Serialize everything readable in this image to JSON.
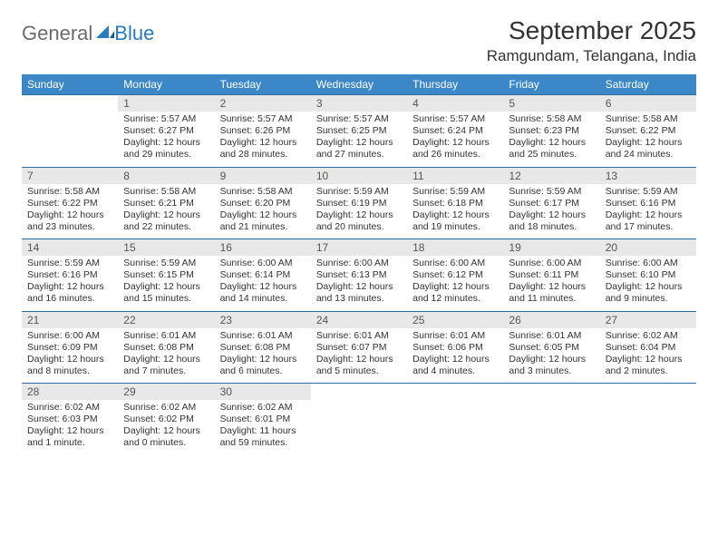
{
  "brand": {
    "word1": "General",
    "word2": "Blue"
  },
  "title": "September 2025",
  "location": "Ramgundam, Telangana, India",
  "colors": {
    "header_bg": "#3b87c8",
    "header_text": "#ffffff",
    "daynum_bg": "#e8e8e8",
    "row_divider": "#2e6ca3",
    "body_text": "#333333",
    "logo_gray": "#6b6b6b",
    "logo_blue": "#2a7ac0",
    "page_bg": "#ffffff"
  },
  "fonts": {
    "title_pt": 28,
    "location_pt": 17,
    "header_pt": 12,
    "daynum_pt": 12,
    "cell_pt": 10.5
  },
  "weekday_headers": [
    "Sunday",
    "Monday",
    "Tuesday",
    "Wednesday",
    "Thursday",
    "Friday",
    "Saturday"
  ],
  "weeks": [
    {
      "days": [
        {
          "empty": true
        },
        {
          "n": "1",
          "l1": "Sunrise: 5:57 AM",
          "l2": "Sunset: 6:27 PM",
          "l3": "Daylight: 12 hours",
          "l4": "and 29 minutes."
        },
        {
          "n": "2",
          "l1": "Sunrise: 5:57 AM",
          "l2": "Sunset: 6:26 PM",
          "l3": "Daylight: 12 hours",
          "l4": "and 28 minutes."
        },
        {
          "n": "3",
          "l1": "Sunrise: 5:57 AM",
          "l2": "Sunset: 6:25 PM",
          "l3": "Daylight: 12 hours",
          "l4": "and 27 minutes."
        },
        {
          "n": "4",
          "l1": "Sunrise: 5:57 AM",
          "l2": "Sunset: 6:24 PM",
          "l3": "Daylight: 12 hours",
          "l4": "and 26 minutes."
        },
        {
          "n": "5",
          "l1": "Sunrise: 5:58 AM",
          "l2": "Sunset: 6:23 PM",
          "l3": "Daylight: 12 hours",
          "l4": "and 25 minutes."
        },
        {
          "n": "6",
          "l1": "Sunrise: 5:58 AM",
          "l2": "Sunset: 6:22 PM",
          "l3": "Daylight: 12 hours",
          "l4": "and 24 minutes."
        }
      ]
    },
    {
      "days": [
        {
          "n": "7",
          "l1": "Sunrise: 5:58 AM",
          "l2": "Sunset: 6:22 PM",
          "l3": "Daylight: 12 hours",
          "l4": "and 23 minutes."
        },
        {
          "n": "8",
          "l1": "Sunrise: 5:58 AM",
          "l2": "Sunset: 6:21 PM",
          "l3": "Daylight: 12 hours",
          "l4": "and 22 minutes."
        },
        {
          "n": "9",
          "l1": "Sunrise: 5:58 AM",
          "l2": "Sunset: 6:20 PM",
          "l3": "Daylight: 12 hours",
          "l4": "and 21 minutes."
        },
        {
          "n": "10",
          "l1": "Sunrise: 5:59 AM",
          "l2": "Sunset: 6:19 PM",
          "l3": "Daylight: 12 hours",
          "l4": "and 20 minutes."
        },
        {
          "n": "11",
          "l1": "Sunrise: 5:59 AM",
          "l2": "Sunset: 6:18 PM",
          "l3": "Daylight: 12 hours",
          "l4": "and 19 minutes."
        },
        {
          "n": "12",
          "l1": "Sunrise: 5:59 AM",
          "l2": "Sunset: 6:17 PM",
          "l3": "Daylight: 12 hours",
          "l4": "and 18 minutes."
        },
        {
          "n": "13",
          "l1": "Sunrise: 5:59 AM",
          "l2": "Sunset: 6:16 PM",
          "l3": "Daylight: 12 hours",
          "l4": "and 17 minutes."
        }
      ]
    },
    {
      "days": [
        {
          "n": "14",
          "l1": "Sunrise: 5:59 AM",
          "l2": "Sunset: 6:16 PM",
          "l3": "Daylight: 12 hours",
          "l4": "and 16 minutes."
        },
        {
          "n": "15",
          "l1": "Sunrise: 5:59 AM",
          "l2": "Sunset: 6:15 PM",
          "l3": "Daylight: 12 hours",
          "l4": "and 15 minutes."
        },
        {
          "n": "16",
          "l1": "Sunrise: 6:00 AM",
          "l2": "Sunset: 6:14 PM",
          "l3": "Daylight: 12 hours",
          "l4": "and 14 minutes."
        },
        {
          "n": "17",
          "l1": "Sunrise: 6:00 AM",
          "l2": "Sunset: 6:13 PM",
          "l3": "Daylight: 12 hours",
          "l4": "and 13 minutes."
        },
        {
          "n": "18",
          "l1": "Sunrise: 6:00 AM",
          "l2": "Sunset: 6:12 PM",
          "l3": "Daylight: 12 hours",
          "l4": "and 12 minutes."
        },
        {
          "n": "19",
          "l1": "Sunrise: 6:00 AM",
          "l2": "Sunset: 6:11 PM",
          "l3": "Daylight: 12 hours",
          "l4": "and 11 minutes."
        },
        {
          "n": "20",
          "l1": "Sunrise: 6:00 AM",
          "l2": "Sunset: 6:10 PM",
          "l3": "Daylight: 12 hours",
          "l4": "and 9 minutes."
        }
      ]
    },
    {
      "days": [
        {
          "n": "21",
          "l1": "Sunrise: 6:00 AM",
          "l2": "Sunset: 6:09 PM",
          "l3": "Daylight: 12 hours",
          "l4": "and 8 minutes."
        },
        {
          "n": "22",
          "l1": "Sunrise: 6:01 AM",
          "l2": "Sunset: 6:08 PM",
          "l3": "Daylight: 12 hours",
          "l4": "and 7 minutes."
        },
        {
          "n": "23",
          "l1": "Sunrise: 6:01 AM",
          "l2": "Sunset: 6:08 PM",
          "l3": "Daylight: 12 hours",
          "l4": "and 6 minutes."
        },
        {
          "n": "24",
          "l1": "Sunrise: 6:01 AM",
          "l2": "Sunset: 6:07 PM",
          "l3": "Daylight: 12 hours",
          "l4": "and 5 minutes."
        },
        {
          "n": "25",
          "l1": "Sunrise: 6:01 AM",
          "l2": "Sunset: 6:06 PM",
          "l3": "Daylight: 12 hours",
          "l4": "and 4 minutes."
        },
        {
          "n": "26",
          "l1": "Sunrise: 6:01 AM",
          "l2": "Sunset: 6:05 PM",
          "l3": "Daylight: 12 hours",
          "l4": "and 3 minutes."
        },
        {
          "n": "27",
          "l1": "Sunrise: 6:02 AM",
          "l2": "Sunset: 6:04 PM",
          "l3": "Daylight: 12 hours",
          "l4": "and 2 minutes."
        }
      ]
    },
    {
      "days": [
        {
          "n": "28",
          "l1": "Sunrise: 6:02 AM",
          "l2": "Sunset: 6:03 PM",
          "l3": "Daylight: 12 hours",
          "l4": "and 1 minute."
        },
        {
          "n": "29",
          "l1": "Sunrise: 6:02 AM",
          "l2": "Sunset: 6:02 PM",
          "l3": "Daylight: 12 hours",
          "l4": "and 0 minutes."
        },
        {
          "n": "30",
          "l1": "Sunrise: 6:02 AM",
          "l2": "Sunset: 6:01 PM",
          "l3": "Daylight: 11 hours",
          "l4": "and 59 minutes."
        },
        {
          "empty": true
        },
        {
          "empty": true
        },
        {
          "empty": true
        },
        {
          "empty": true
        }
      ]
    }
  ]
}
